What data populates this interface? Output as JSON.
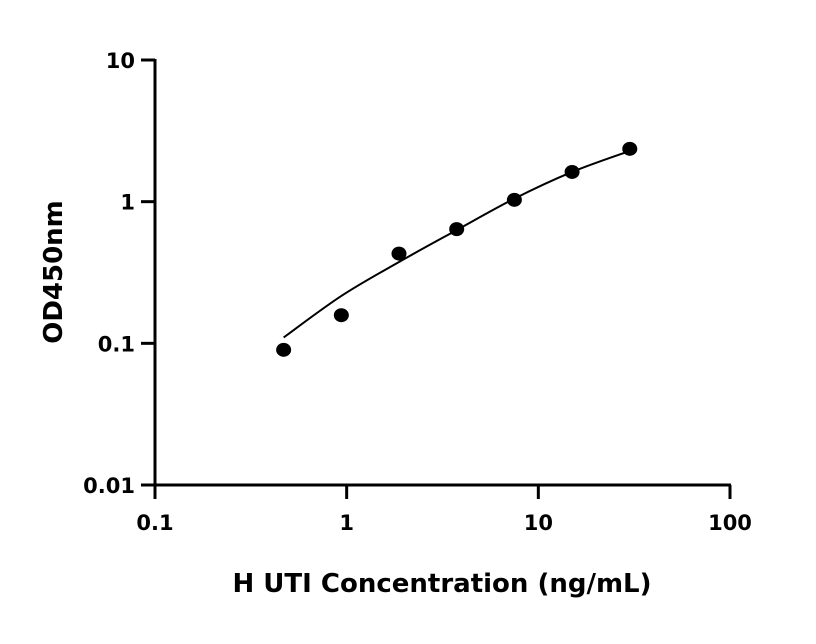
{
  "chart_data": {
    "type": "scatter",
    "title": "",
    "xlabel": "H UTI Concentration (ng/mL)",
    "ylabel": "OD450nm",
    "xscale": "log",
    "yscale": "log",
    "xlim": [
      0.1,
      100
    ],
    "ylim": [
      0.01,
      10
    ],
    "xticks": [
      0.1,
      1,
      10,
      100
    ],
    "xtick_labels": [
      "0.1",
      "1",
      "10",
      "100"
    ],
    "yticks": [
      0.01,
      0.1,
      1,
      10
    ],
    "ytick_labels": [
      "0.01",
      "0.1",
      "1",
      "10"
    ],
    "grid": false,
    "legend": "none",
    "marker_color": "#000000",
    "points": {
      "x": [
        0.469,
        0.938,
        1.875,
        3.75,
        7.5,
        15,
        30
      ],
      "y": [
        0.09,
        0.158,
        0.43,
        0.64,
        1.03,
        1.62,
        2.36
      ]
    },
    "fit_curve": {
      "x": [
        0.469,
        0.938,
        1.875,
        3.75,
        7.5,
        15,
        30
      ],
      "y": [
        0.11,
        0.216,
        0.375,
        0.63,
        1.05,
        1.62,
        2.28
      ]
    }
  }
}
